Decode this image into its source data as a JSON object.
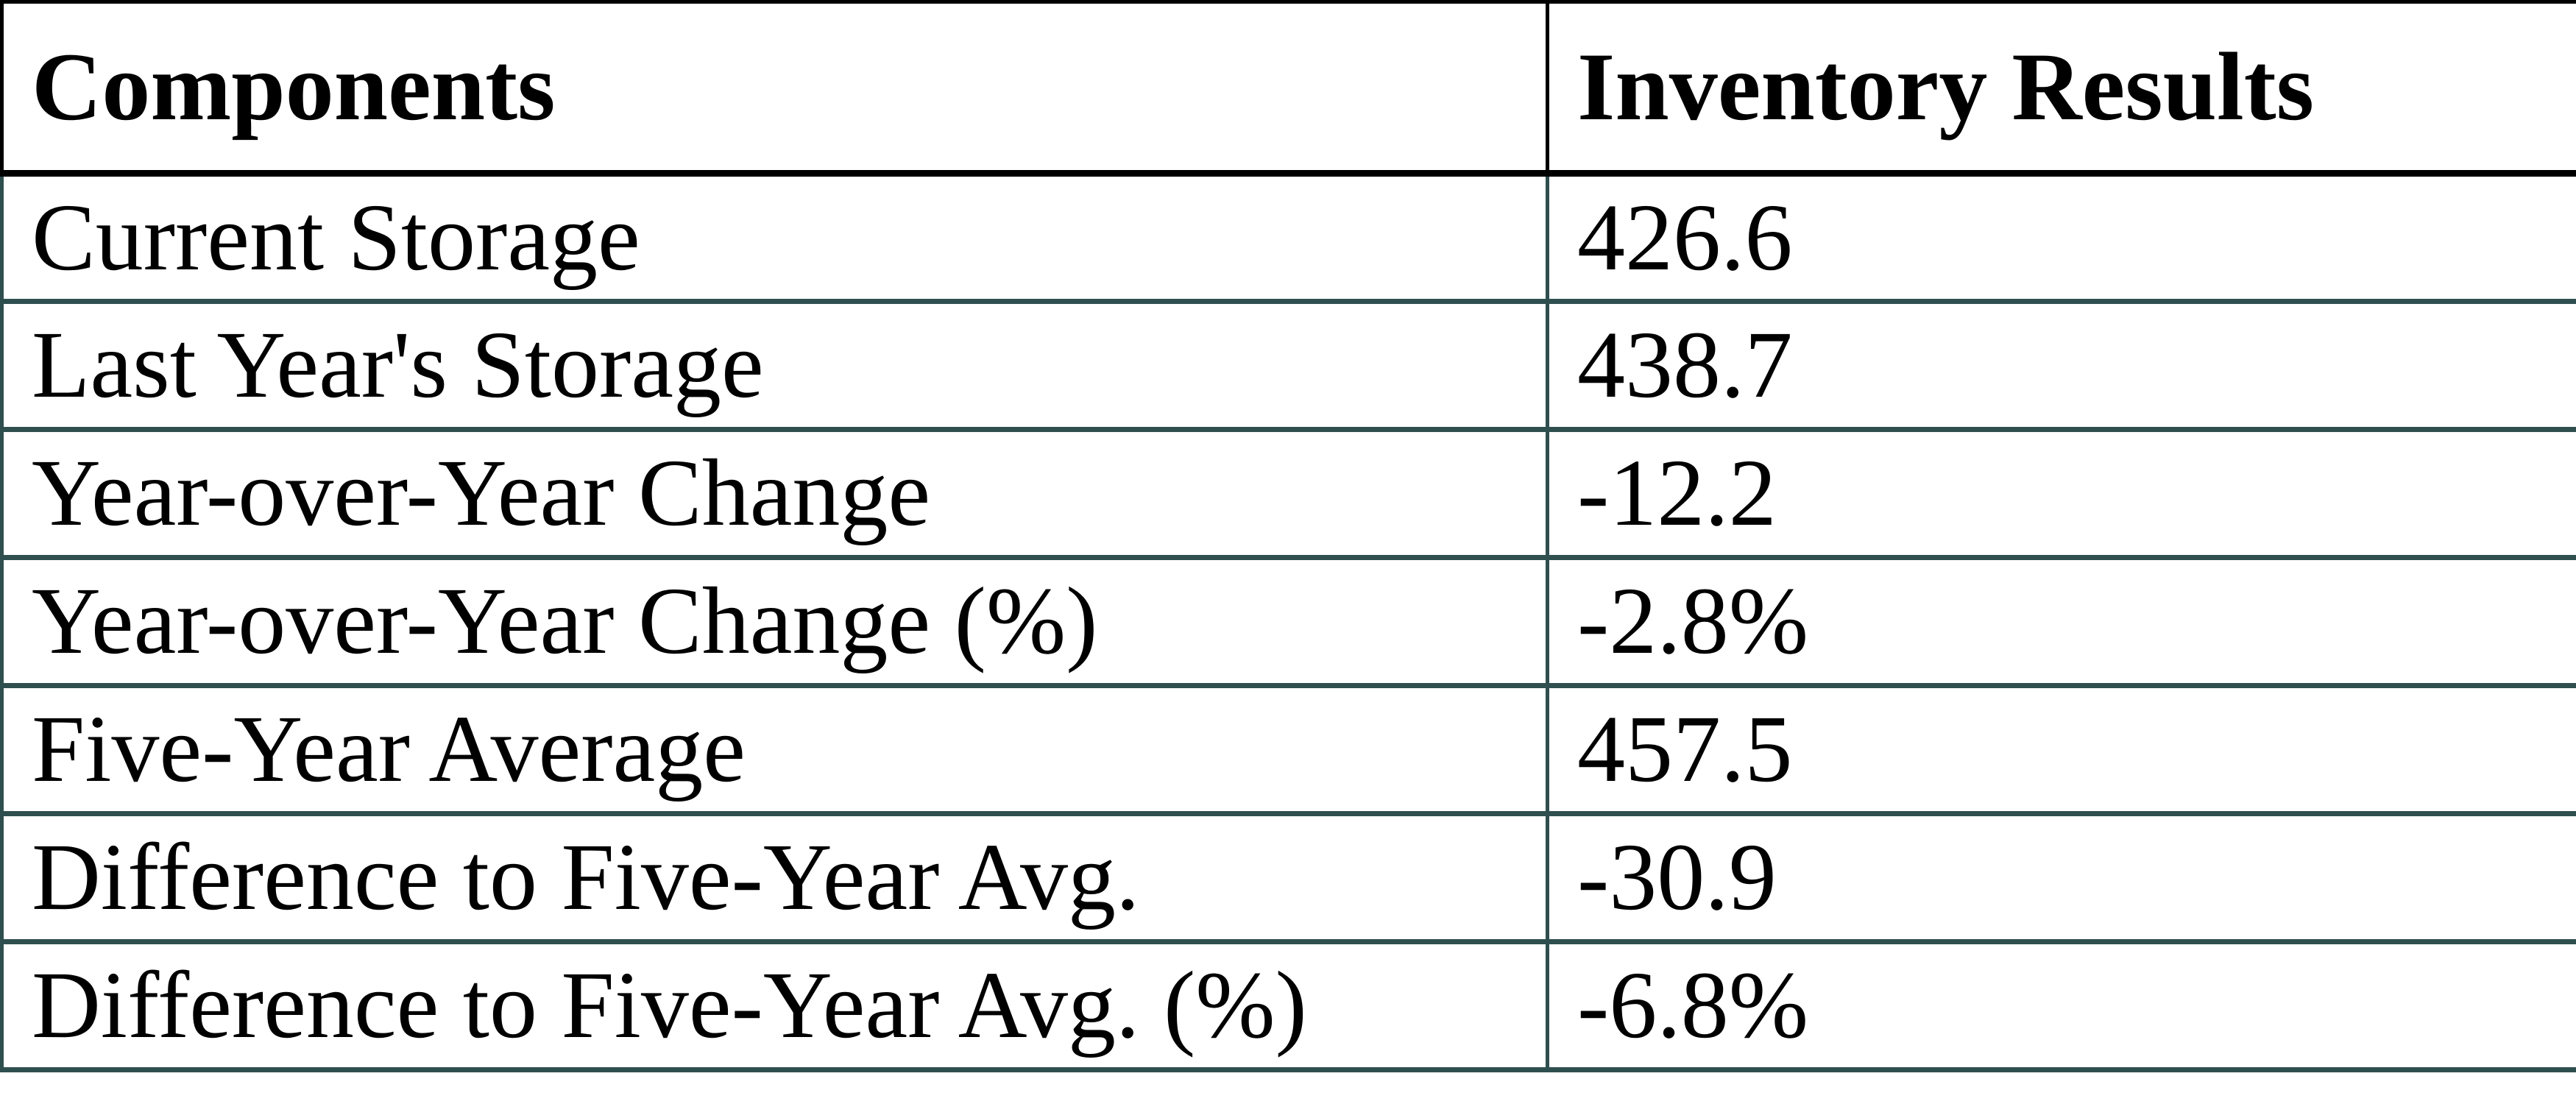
{
  "chart_data": {
    "type": "table",
    "columns": [
      "Components",
      "Inventory Results"
    ],
    "rows": [
      {
        "label": "Current Storage",
        "value": "426.6"
      },
      {
        "label": "Last Year's Storage",
        "value": "438.7"
      },
      {
        "label": "Year-over-Year Change",
        "value": "-12.2"
      },
      {
        "label": "Year-over-Year Change (%)",
        "value": "-2.8%"
      },
      {
        "label": "Five-Year Average",
        "value": "457.5"
      },
      {
        "label": "Difference to Five-Year Avg.",
        "value": "-30.9"
      },
      {
        "label": "Difference to Five-Year Avg. (%)",
        "value": "-6.8%"
      }
    ],
    "layout": {
      "grid": "on",
      "header_position": "top"
    }
  },
  "colors": {
    "header_border": "#000000",
    "body_border": "#2F4F4F",
    "text": "#000000",
    "background": "#FFFFFF"
  }
}
